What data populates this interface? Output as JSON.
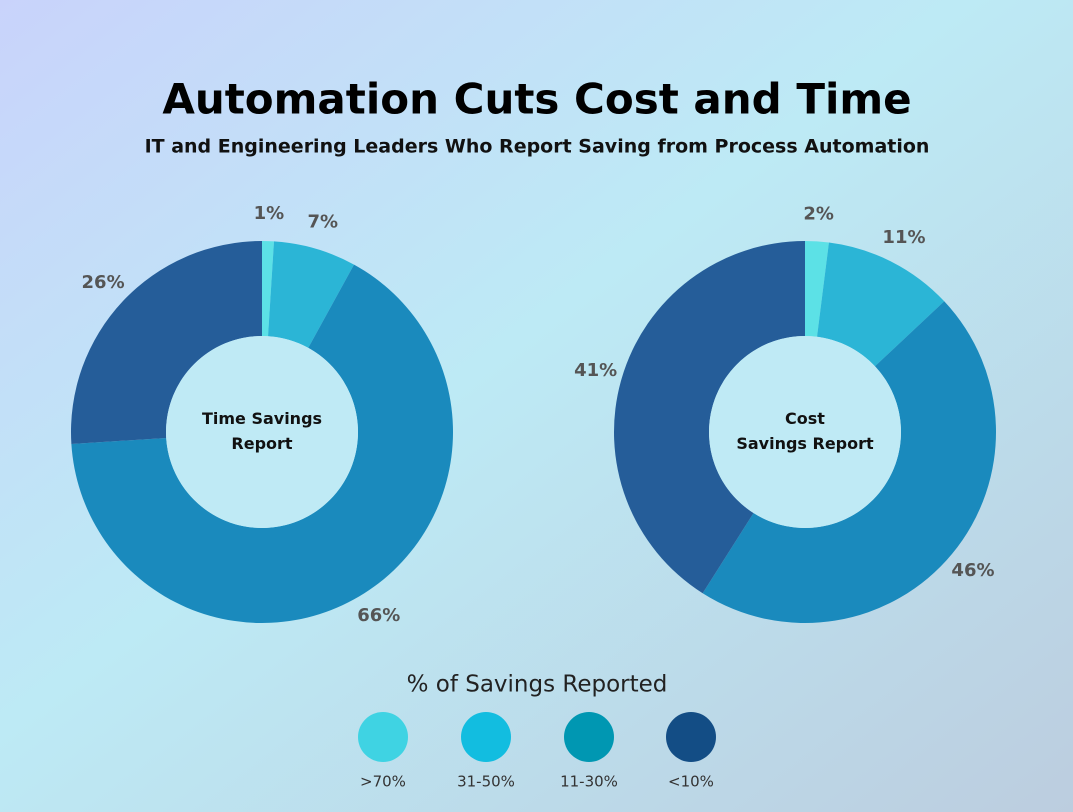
{
  "title": "Automation Cuts Cost and Time",
  "subtitle": "IT and Engineering Leaders Who Report Saving from Process Automation",
  "legend": {
    "title": "% of Savings Reported",
    "labels": [
      ">70%",
      "31-50%",
      "11-30%",
      "<10%"
    ],
    "colors": [
      "#3fd3e3",
      "#12bde0",
      "#0097b2",
      "#134d85"
    ]
  },
  "chart_data": [
    {
      "type": "pie",
      "center_label": [
        "Time Savings",
        "Report"
      ],
      "values": [
        1,
        7,
        66,
        26
      ],
      "value_labels": [
        "1%",
        "7%",
        "66%",
        "26%"
      ],
      "colors": [
        "#5ce1e6",
        "#2bb5d6",
        "#1a8abd",
        "#255d99"
      ]
    },
    {
      "type": "pie",
      "center_label": [
        "Cost",
        "Savings Report"
      ],
      "values": [
        2,
        11,
        46,
        41
      ],
      "value_labels": [
        "2%",
        "11%",
        "46%",
        "41%"
      ],
      "colors": [
        "#5ce1e6",
        "#2bb5d6",
        "#1a8abd",
        "#255d99"
      ]
    }
  ]
}
